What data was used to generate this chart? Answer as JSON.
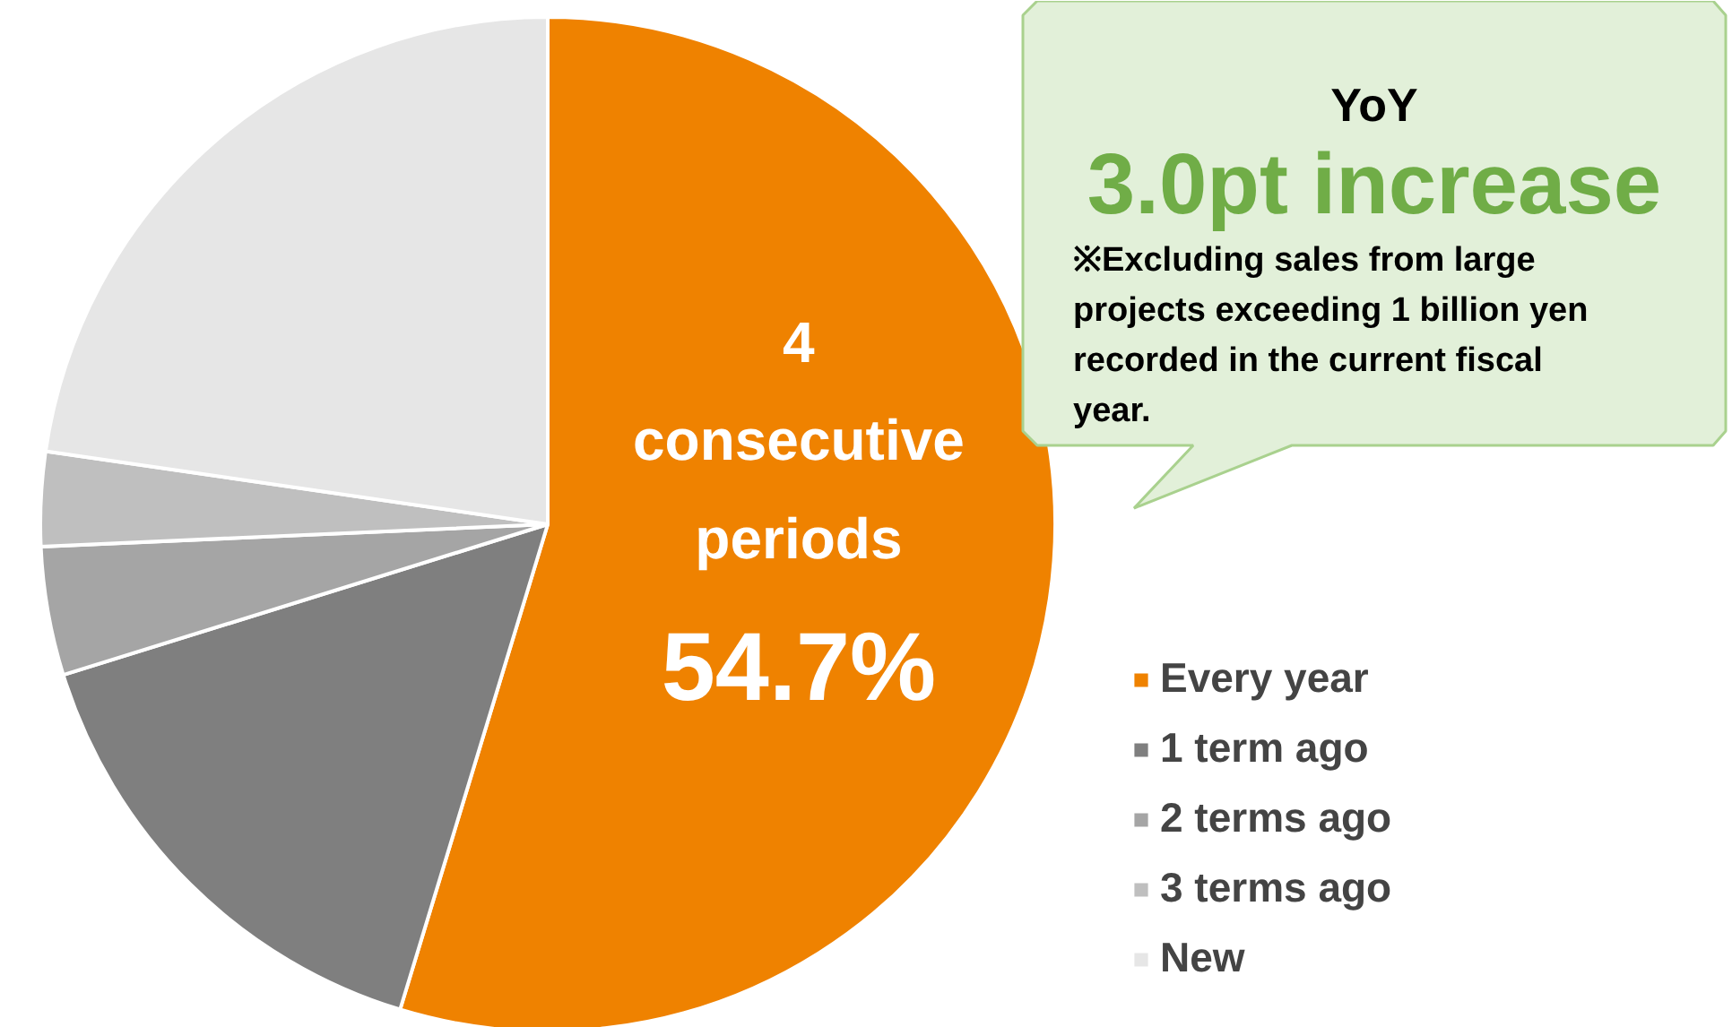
{
  "chart_data": {
    "type": "pie",
    "categories": [
      "Every year",
      "1 term ago",
      "2 terms ago",
      "3 terms ago",
      "New"
    ],
    "values": [
      54.7,
      15.5,
      4.1,
      3.0,
      22.7
    ],
    "colors": [
      "#ef8200",
      "#7f7f7f",
      "#a5a5a5",
      "#bfbfbf",
      "#e6e6e6"
    ],
    "value_labels": [
      "54.7%",
      null,
      null,
      null,
      null
    ],
    "legend": "right",
    "annotations": [
      "4 consecutive periods",
      "YoY",
      "3.0pt increase",
      "※Excluding sales from large projects exceeding 1 billion yen recorded in the current fiscal year."
    ]
  }
}
